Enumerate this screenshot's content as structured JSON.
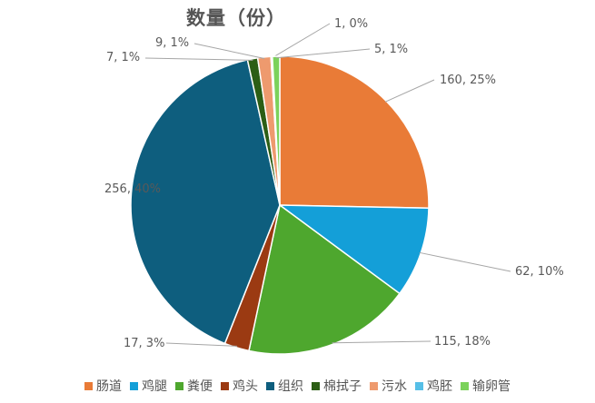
{
  "chart_data": {
    "type": "pie",
    "title": "数量（份）",
    "categories": [
      "肠道",
      "鸡腿",
      "粪便",
      "鸡头",
      "组织",
      "棉拭子",
      "污水",
      "鸡胚",
      "输卵管"
    ],
    "values": [
      160,
      62,
      115,
      17,
      256,
      7,
      9,
      1,
      5
    ],
    "data_labels": [
      "160, 25%",
      "62, 10%",
      "115, 18%",
      "17, 3%",
      "256, 40%",
      "7, 1%",
      "9, 1%",
      "1, 0%",
      "5, 1%"
    ],
    "colors": [
      "#E97B37",
      "#149FD8",
      "#4EA72E",
      "#9B3A12",
      "#0E5E7E",
      "#2C5E15",
      "#EE9A6E",
      "#56BFE7",
      "#7BD25B"
    ],
    "legend_position": "bottom"
  }
}
